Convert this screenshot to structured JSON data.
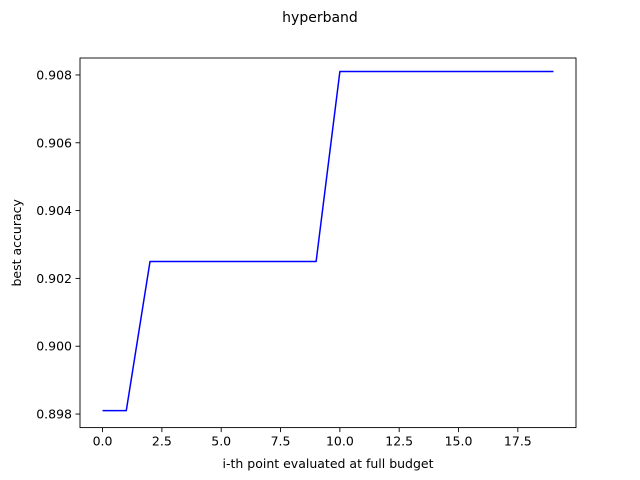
{
  "chart_data": {
    "type": "line",
    "title": "hyperband",
    "xlabel": "i-th point evaluated at full budget",
    "ylabel": "best accuracy",
    "xlim": [
      -0.95,
      19.95
    ],
    "ylim": [
      0.8976,
      0.9085
    ],
    "xticks": [
      0.0,
      2.5,
      5.0,
      7.5,
      10.0,
      12.5,
      15.0,
      17.5
    ],
    "xtick_labels": [
      "0.0",
      "2.5",
      "5.0",
      "7.5",
      "10.0",
      "12.5",
      "15.0",
      "17.5"
    ],
    "yticks": [
      0.898,
      0.9,
      0.902,
      0.904,
      0.906,
      0.908
    ],
    "ytick_labels": [
      "0.898",
      "0.900",
      "0.902",
      "0.904",
      "0.906",
      "0.908"
    ],
    "grid": false,
    "series": [
      {
        "color": "#0000ff",
        "x": [
          0,
          1,
          2,
          3,
          4,
          5,
          6,
          7,
          8,
          9,
          10,
          11,
          12,
          13,
          14,
          15,
          16,
          17,
          18,
          19
        ],
        "y": [
          0.8981,
          0.8981,
          0.9025,
          0.9025,
          0.9025,
          0.9025,
          0.9025,
          0.9025,
          0.9025,
          0.9025,
          0.9081,
          0.9081,
          0.9081,
          0.9081,
          0.9081,
          0.9081,
          0.9081,
          0.9081,
          0.9081,
          0.9081
        ]
      }
    ]
  }
}
